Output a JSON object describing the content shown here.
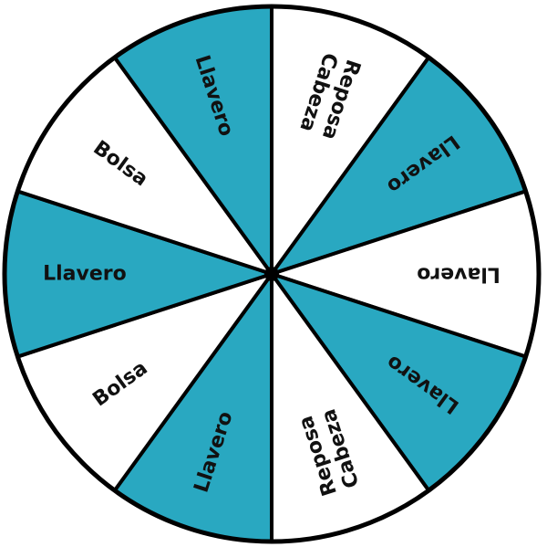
{
  "wheel": {
    "colors": {
      "teal": "#29a8c1",
      "white": "#ffffff",
      "outline": "#000000"
    },
    "segments": [
      {
        "label_lines": [
          "Reposa",
          "Cabeza"
        ],
        "color": "white"
      },
      {
        "label_lines": [
          "Llavero"
        ],
        "color": "teal"
      },
      {
        "label_lines": [
          "Llavero"
        ],
        "color": "white"
      },
      {
        "label_lines": [
          "Llavero"
        ],
        "color": "teal"
      },
      {
        "label_lines": [
          "Reposa",
          "Cabeza"
        ],
        "color": "white"
      },
      {
        "label_lines": [
          "Llavero"
        ],
        "color": "teal"
      },
      {
        "label_lines": [
          "Bolsa"
        ],
        "color": "white"
      },
      {
        "label_lines": [
          "Llavero"
        ],
        "color": "teal"
      },
      {
        "label_lines": [
          "Bolsa"
        ],
        "color": "white"
      },
      {
        "label_lines": [
          "Llavero"
        ],
        "color": "teal"
      }
    ]
  }
}
